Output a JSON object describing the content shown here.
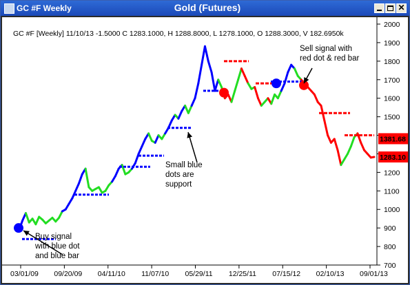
{
  "window": {
    "title": "GC #F Weekly",
    "center_title": "Gold (Futures)"
  },
  "chart_data": {
    "type": "line",
    "header_text": "GC #F [Weekly] 11/10/13  -1.5000 C 1283.1000, H 1288.8000, L 1278.1000, O 1288.3000, V 182.6950k",
    "y_ticks": [
      700,
      800,
      900,
      1000,
      1100,
      1200,
      1300,
      1400,
      1500,
      1600,
      1700,
      1800,
      1900,
      2000
    ],
    "ylim": [
      700,
      2000
    ],
    "x_ticks": [
      "03/01/09",
      "09/20/09",
      "04/11/10",
      "11/07/10",
      "05/29/11",
      "12/25/11",
      "07/15/12",
      "02/10/13",
      "09/01/13"
    ],
    "grid": false,
    "colors": {
      "up": "#22dd22",
      "down": "#0000ff",
      "sell": "#ff0000",
      "support": "#0000ff"
    },
    "price_labels": [
      {
        "value": 1381.68,
        "text": "1381.68"
      },
      {
        "value": 1283.1,
        "text": "1283.10"
      }
    ],
    "price_series": [
      {
        "p": 900,
        "c": "up"
      },
      {
        "p": 890,
        "c": "down"
      },
      {
        "p": 940,
        "c": "down"
      },
      {
        "p": 980,
        "c": "down"
      },
      {
        "p": 930,
        "c": "up"
      },
      {
        "p": 950,
        "c": "up"
      },
      {
        "p": 920,
        "c": "up"
      },
      {
        "p": 960,
        "c": "up"
      },
      {
        "p": 945,
        "c": "up"
      },
      {
        "p": 925,
        "c": "up"
      },
      {
        "p": 940,
        "c": "up"
      },
      {
        "p": 955,
        "c": "up"
      },
      {
        "p": 935,
        "c": "up"
      },
      {
        "p": 955,
        "c": "up"
      },
      {
        "p": 990,
        "c": "up"
      },
      {
        "p": 1000,
        "c": "down"
      },
      {
        "p": 1030,
        "c": "down"
      },
      {
        "p": 1060,
        "c": "down"
      },
      {
        "p": 1100,
        "c": "down"
      },
      {
        "p": 1140,
        "c": "down"
      },
      {
        "p": 1190,
        "c": "down"
      },
      {
        "p": 1220,
        "c": "down"
      },
      {
        "p": 1120,
        "c": "up"
      },
      {
        "p": 1100,
        "c": "up"
      },
      {
        "p": 1110,
        "c": "up"
      },
      {
        "p": 1120,
        "c": "up"
      },
      {
        "p": 1090,
        "c": "up"
      },
      {
        "p": 1100,
        "c": "up"
      },
      {
        "p": 1130,
        "c": "up"
      },
      {
        "p": 1150,
        "c": "up"
      },
      {
        "p": 1180,
        "c": "down"
      },
      {
        "p": 1220,
        "c": "down"
      },
      {
        "p": 1240,
        "c": "down"
      },
      {
        "p": 1190,
        "c": "up"
      },
      {
        "p": 1200,
        "c": "up"
      },
      {
        "p": 1220,
        "c": "up"
      },
      {
        "p": 1250,
        "c": "down"
      },
      {
        "p": 1300,
        "c": "down"
      },
      {
        "p": 1340,
        "c": "down"
      },
      {
        "p": 1380,
        "c": "down"
      },
      {
        "p": 1410,
        "c": "down"
      },
      {
        "p": 1370,
        "c": "up"
      },
      {
        "p": 1360,
        "c": "up"
      },
      {
        "p": 1400,
        "c": "down"
      },
      {
        "p": 1380,
        "c": "up"
      },
      {
        "p": 1410,
        "c": "up"
      },
      {
        "p": 1440,
        "c": "down"
      },
      {
        "p": 1480,
        "c": "down"
      },
      {
        "p": 1510,
        "c": "down"
      },
      {
        "p": 1490,
        "c": "up"
      },
      {
        "p": 1530,
        "c": "down"
      },
      {
        "p": 1560,
        "c": "down"
      },
      {
        "p": 1520,
        "c": "up"
      },
      {
        "p": 1560,
        "c": "up"
      },
      {
        "p": 1600,
        "c": "down"
      },
      {
        "p": 1680,
        "c": "down"
      },
      {
        "p": 1780,
        "c": "down"
      },
      {
        "p": 1880,
        "c": "down"
      },
      {
        "p": 1800,
        "c": "down"
      },
      {
        "p": 1740,
        "c": "down"
      },
      {
        "p": 1640,
        "c": "down"
      },
      {
        "p": 1700,
        "c": "down"
      },
      {
        "p": 1660,
        "c": "up"
      },
      {
        "p": 1600,
        "c": "up"
      },
      {
        "p": 1620,
        "c": "sell"
      },
      {
        "p": 1580,
        "c": "sell"
      },
      {
        "p": 1640,
        "c": "up"
      },
      {
        "p": 1700,
        "c": "up"
      },
      {
        "p": 1760,
        "c": "up"
      },
      {
        "p": 1720,
        "c": "sell"
      },
      {
        "p": 1680,
        "c": "sell"
      },
      {
        "p": 1650,
        "c": "up"
      },
      {
        "p": 1660,
        "c": "up"
      },
      {
        "p": 1600,
        "c": "sell"
      },
      {
        "p": 1560,
        "c": "sell"
      },
      {
        "p": 1580,
        "c": "up"
      },
      {
        "p": 1600,
        "c": "up"
      },
      {
        "p": 1570,
        "c": "sell"
      },
      {
        "p": 1620,
        "c": "up"
      },
      {
        "p": 1600,
        "c": "up"
      },
      {
        "p": 1640,
        "c": "up"
      },
      {
        "p": 1680,
        "c": "down"
      },
      {
        "p": 1740,
        "c": "down"
      },
      {
        "p": 1780,
        "c": "down"
      },
      {
        "p": 1760,
        "c": "down"
      },
      {
        "p": 1720,
        "c": "up"
      },
      {
        "p": 1700,
        "c": "up"
      },
      {
        "p": 1680,
        "c": "sell"
      },
      {
        "p": 1660,
        "c": "sell"
      },
      {
        "p": 1640,
        "c": "sell"
      },
      {
        "p": 1620,
        "c": "sell"
      },
      {
        "p": 1580,
        "c": "sell"
      },
      {
        "p": 1560,
        "c": "sell"
      },
      {
        "p": 1480,
        "c": "sell"
      },
      {
        "p": 1400,
        "c": "sell"
      },
      {
        "p": 1360,
        "c": "sell"
      },
      {
        "p": 1380,
        "c": "sell"
      },
      {
        "p": 1320,
        "c": "sell"
      },
      {
        "p": 1240,
        "c": "sell"
      },
      {
        "p": 1270,
        "c": "up"
      },
      {
        "p": 1300,
        "c": "up"
      },
      {
        "p": 1340,
        "c": "up"
      },
      {
        "p": 1390,
        "c": "up"
      },
      {
        "p": 1410,
        "c": "up"
      },
      {
        "p": 1360,
        "c": "sell"
      },
      {
        "p": 1320,
        "c": "sell"
      },
      {
        "p": 1300,
        "c": "sell"
      },
      {
        "p": 1280,
        "c": "sell"
      },
      {
        "p": 1283,
        "c": "sell"
      }
    ],
    "support_segments": [
      {
        "x1": 29,
        "x2": 78,
        "y": 840
      },
      {
        "x1": 105,
        "x2": 155,
        "y": 1080
      },
      {
        "x1": 170,
        "x2": 215,
        "y": 1230
      },
      {
        "x1": 198,
        "x2": 235,
        "y": 1290
      },
      {
        "x1": 240,
        "x2": 275,
        "y": 1440
      },
      {
        "x1": 292,
        "x2": 318,
        "y": 1640
      },
      {
        "x1": 390,
        "x2": 440,
        "y": 1690
      }
    ],
    "sell_segments": [
      {
        "x1": 322,
        "x2": 358,
        "y": 1800
      },
      {
        "x1": 368,
        "x2": 398,
        "y": 1680
      },
      {
        "x1": 460,
        "x2": 505,
        "y": 1520
      },
      {
        "x1": 497,
        "x2": 540,
        "y": 1400
      }
    ],
    "signal_dots": [
      {
        "x": 24,
        "y": 900,
        "color": "#0000ff"
      },
      {
        "x": 322,
        "y": 1630,
        "color": "#ff0000"
      },
      {
        "x": 398,
        "y": 1680,
        "color": "#0000ff"
      },
      {
        "x": 438,
        "y": 1670,
        "color": "#ff0000"
      }
    ],
    "annotations": [
      {
        "lines": [
          "Buy signal",
          "with blue dot",
          "and blue bar"
        ],
        "tx": 48,
        "ty": 322,
        "ax1": 88,
        "ay1": 345,
        "ax2": 31,
        "ay2": 310
      },
      {
        "lines": [
          "Small blue",
          "dots are",
          "support"
        ],
        "tx": 237,
        "ty": 218,
        "ax1": 283,
        "ay1": 211,
        "ax2": 270,
        "ay2": 167
      },
      {
        "lines": [
          "Sell signal with",
          "red dot & red bar"
        ],
        "tx": 432,
        "ty": 49,
        "ax1": 450,
        "ay1": 74,
        "ax2": 438,
        "ay2": 96
      }
    ]
  }
}
